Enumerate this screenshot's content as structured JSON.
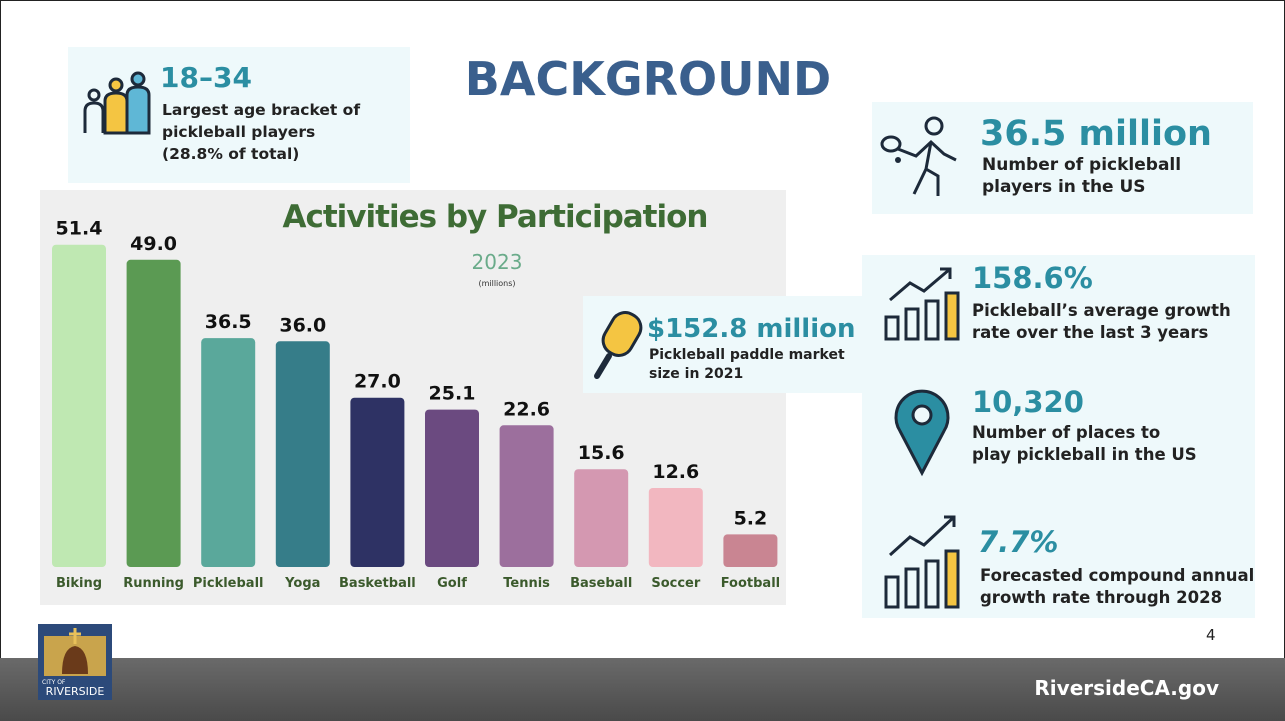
{
  "title": "BACKGROUND",
  "stats": [
    {
      "value": "18–34",
      "lines": [
        "Largest age bracket of",
        "pickleball players",
        "(28.8% of total)"
      ]
    },
    {
      "value": "36.5 million",
      "lines": [
        "Number of pickleball",
        "players in the US"
      ]
    },
    {
      "value": "$152.8 million",
      "lines": [
        "Pickleball paddle market",
        "size in 2021"
      ]
    },
    {
      "value": "158.6%",
      "lines": [
        "Pickleball’s average growth",
        "rate over the last 3 years"
      ]
    },
    {
      "value": "10,320",
      "lines": [
        "Number of places to",
        "play pickleball in the US"
      ]
    },
    {
      "value": "7.7%",
      "lines": [
        "Forecasted compound annual",
        "growth rate through 2028"
      ]
    }
  ],
  "chart_data": {
    "type": "bar",
    "title": "Activities by Participation",
    "subtitle": "2023",
    "units": "(millions)",
    "categories": [
      "Biking",
      "Running",
      "Pickleball",
      "Yoga",
      "Basketball",
      "Golf",
      "Tennis",
      "Baseball",
      "Soccer",
      "Football"
    ],
    "values": [
      51.4,
      49.0,
      36.5,
      36.0,
      27.0,
      25.1,
      22.6,
      15.6,
      12.6,
      5.2
    ],
    "value_labels": [
      "51.4",
      "49.0",
      "36.5",
      "36.0",
      "27.0",
      "25.1",
      "22.6",
      "15.6",
      "12.6",
      "5.2"
    ],
    "colors": [
      "#bfe8b2",
      "#5b9a53",
      "#5aa89b",
      "#367d89",
      "#2e3264",
      "#6b4a80",
      "#9c6f9d",
      "#d498b1",
      "#f2b7c0",
      "#c98592"
    ]
  },
  "page_number": 4,
  "logo": {
    "lines": [
      "CITY OF",
      "RIVERSIDE"
    ]
  },
  "footer": {
    "website": "RiversideCA.gov"
  }
}
